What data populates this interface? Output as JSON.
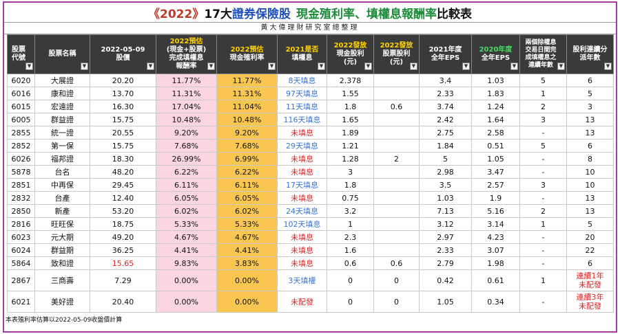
{
  "title": {
    "year": "《2022》",
    "part1": "17大",
    "part2": "證券保險股",
    "part3": "現金殖利率、填權息報酬率",
    "part4": "比較表"
  },
  "subtitle": "黃大偉理財研究室總整理",
  "headers": {
    "code": "股票代號",
    "name": "股票名稱",
    "price_l1": "2022-05-09",
    "price_l2": "股價",
    "fill_yield_l1": "2022預估",
    "fill_yield_l2": "(現金+股票)",
    "fill_yield_l3": "完成填權息",
    "fill_yield_l4": "報酬率",
    "cash_yield_l1": "2022預估",
    "cash_yield_l2": "現金殖利率",
    "filled_l1": "2021是否",
    "filled_l2": "填權息",
    "cash_div_l1": "2022發放",
    "cash_div_l2": "現金股利",
    "cash_div_l3": "(元)",
    "stock_div_l1": "2022發放",
    "stock_div_l2": "股票股利",
    "stock_div_l3": "(元)",
    "eps2021_l1": "2021年度",
    "eps2021_l2": "全年EPS",
    "eps2020_l1": "2020年度",
    "eps2020_l2": "全年EPS",
    "consec_fill": "兩個除權息交易日間完成填權息之連續年數",
    "consec_div_l1": "股利連續分",
    "consec_div_l2": "派年數"
  },
  "rows": [
    {
      "code": "6020",
      "name": "大展證",
      "price": "20.20",
      "fill_yield": "11.77%",
      "cash_yield": "11.77%",
      "filled": "8天填息",
      "cash_div": "2.378",
      "stock_div": "",
      "eps2021": "3.4",
      "eps2020": "1.03",
      "consec_fill": "5",
      "consec_div": "6"
    },
    {
      "code": "6016",
      "name": "康和證",
      "price": "13.70",
      "fill_yield": "11.31%",
      "cash_yield": "11.31%",
      "filled": "97天填息",
      "cash_div": "1.55",
      "stock_div": "",
      "eps2021": "2.33",
      "eps2020": "1.83",
      "consec_fill": "1",
      "consec_div": "5"
    },
    {
      "code": "6015",
      "name": "宏遠證",
      "price": "16.30",
      "fill_yield": "17.04%",
      "cash_yield": "11.04%",
      "filled": "11天填息",
      "cash_div": "1.8",
      "stock_div": "0.6",
      "eps2021": "3.74",
      "eps2020": "1.24",
      "consec_fill": "2",
      "consec_div": "3"
    },
    {
      "code": "6005",
      "name": "群益證",
      "price": "15.75",
      "fill_yield": "10.48%",
      "cash_yield": "10.48%",
      "filled": "116天填息",
      "cash_div": "1.65",
      "stock_div": "",
      "eps2021": "2.42",
      "eps2020": "1.64",
      "consec_fill": "3",
      "consec_div": "13"
    },
    {
      "code": "2855",
      "name": "統一證",
      "price": "20.55",
      "fill_yield": "9.20%",
      "cash_yield": "9.20%",
      "filled": "未填息",
      "cash_div": "1.89",
      "stock_div": "",
      "eps2021": "2.75",
      "eps2020": "2.58",
      "consec_fill": "-",
      "consec_div": "13"
    },
    {
      "code": "2852",
      "name": "第一保",
      "price": "15.75",
      "fill_yield": "7.68%",
      "cash_yield": "7.68%",
      "filled": "29天填息",
      "cash_div": "1.21",
      "stock_div": "",
      "eps2021": "1.84",
      "eps2020": "0.51",
      "consec_fill": "5",
      "consec_div": "6"
    },
    {
      "code": "6026",
      "name": "福邦證",
      "price": "18.30",
      "fill_yield": "26.99%",
      "cash_yield": "6.99%",
      "filled": "未填息",
      "cash_div": "1.28",
      "stock_div": "2",
      "eps2021": "5",
      "eps2020": "1.05",
      "consec_fill": "-",
      "consec_div": "8"
    },
    {
      "code": "5878",
      "name": "台名",
      "price": "48.20",
      "fill_yield": "6.22%",
      "cash_yield": "6.22%",
      "filled": "未填息",
      "cash_div": "3",
      "stock_div": "",
      "eps2021": "2.98",
      "eps2020": "3.47",
      "consec_fill": "-",
      "consec_div": "10"
    },
    {
      "code": "2851",
      "name": "中再保",
      "price": "29.45",
      "fill_yield": "6.11%",
      "cash_yield": "6.11%",
      "filled": "17天填息",
      "cash_div": "1.8",
      "stock_div": "",
      "eps2021": "3.5",
      "eps2020": "2.57",
      "consec_fill": "3",
      "consec_div": "10"
    },
    {
      "code": "2832",
      "name": "台產",
      "price": "12.40",
      "fill_yield": "6.05%",
      "cash_yield": "6.05%",
      "filled": "未填息",
      "cash_div": "0.75",
      "stock_div": "",
      "eps2021": "1.03",
      "eps2020": "1.9",
      "consec_fill": "-",
      "consec_div": "13"
    },
    {
      "code": "2850",
      "name": "新產",
      "price": "53.20",
      "fill_yield": "6.02%",
      "cash_yield": "6.02%",
      "filled": "24天填息",
      "cash_div": "3.2",
      "stock_div": "",
      "eps2021": "7.13",
      "eps2020": "5.16",
      "consec_fill": "2",
      "consec_div": "13"
    },
    {
      "code": "2816",
      "name": "旺旺保",
      "price": "18.75",
      "fill_yield": "5.33%",
      "cash_yield": "5.33%",
      "filled": "102天填息",
      "cash_div": "1",
      "stock_div": "",
      "eps2021": "3.12",
      "eps2020": "3.14",
      "consec_fill": "1",
      "consec_div": "5"
    },
    {
      "code": "6023",
      "name": "元大期",
      "price": "49.20",
      "fill_yield": "4.67%",
      "cash_yield": "4.67%",
      "filled": "未填息",
      "cash_div": "2.3",
      "stock_div": "",
      "eps2021": "2.97",
      "eps2020": "4.23",
      "consec_fill": "-",
      "consec_div": "20"
    },
    {
      "code": "6024",
      "name": "群益期",
      "price": "36.25",
      "fill_yield": "4.41%",
      "cash_yield": "4.41%",
      "filled": "未填息",
      "cash_div": "1.6",
      "stock_div": "",
      "eps2021": "2.33",
      "eps2020": "3.07",
      "consec_fill": "-",
      "consec_div": "22"
    },
    {
      "code": "5864",
      "name": "致和證",
      "price": "15.65",
      "fill_yield": "9.83%",
      "cash_yield": "3.83%",
      "filled": "未填息",
      "cash_div": "0.6",
      "stock_div": "0.6",
      "eps2021": "2.79",
      "eps2020": "1.98",
      "consec_fill": "-",
      "consec_div": "6",
      "price_red": true
    },
    {
      "code": "2867",
      "name": "三商壽",
      "price": "7.29",
      "fill_yield": "0.00%",
      "cash_yield": "0.00%",
      "filled": "3天填權",
      "cash_div": "0",
      "stock_div": "0",
      "eps2021": "0.42",
      "eps2020": "0.61",
      "consec_fill": "1",
      "consec_div_l1": "連續1年",
      "consec_div_l2": "未配發"
    },
    {
      "code": "6021",
      "name": "美好證",
      "price": "20.40",
      "fill_yield": "0.00%",
      "cash_yield": "0.00%",
      "filled": "未配發",
      "cash_div": "0",
      "stock_div": "0",
      "eps2021": "1.05",
      "eps2020": "0.34",
      "consec_fill": "-",
      "consec_div_l1": "連續3年",
      "consec_div_l2": "未配發"
    }
  ],
  "footnote": "本表殖利率估算以2022-05-09收盤價計算",
  "colors": {
    "border": "#a23aa6",
    "header_bg": "#3a3a3a",
    "pink": "#fbd6e1",
    "gold": "#f9c74f",
    "blue_text": "#3a74d6",
    "red_text": "#e02020"
  }
}
